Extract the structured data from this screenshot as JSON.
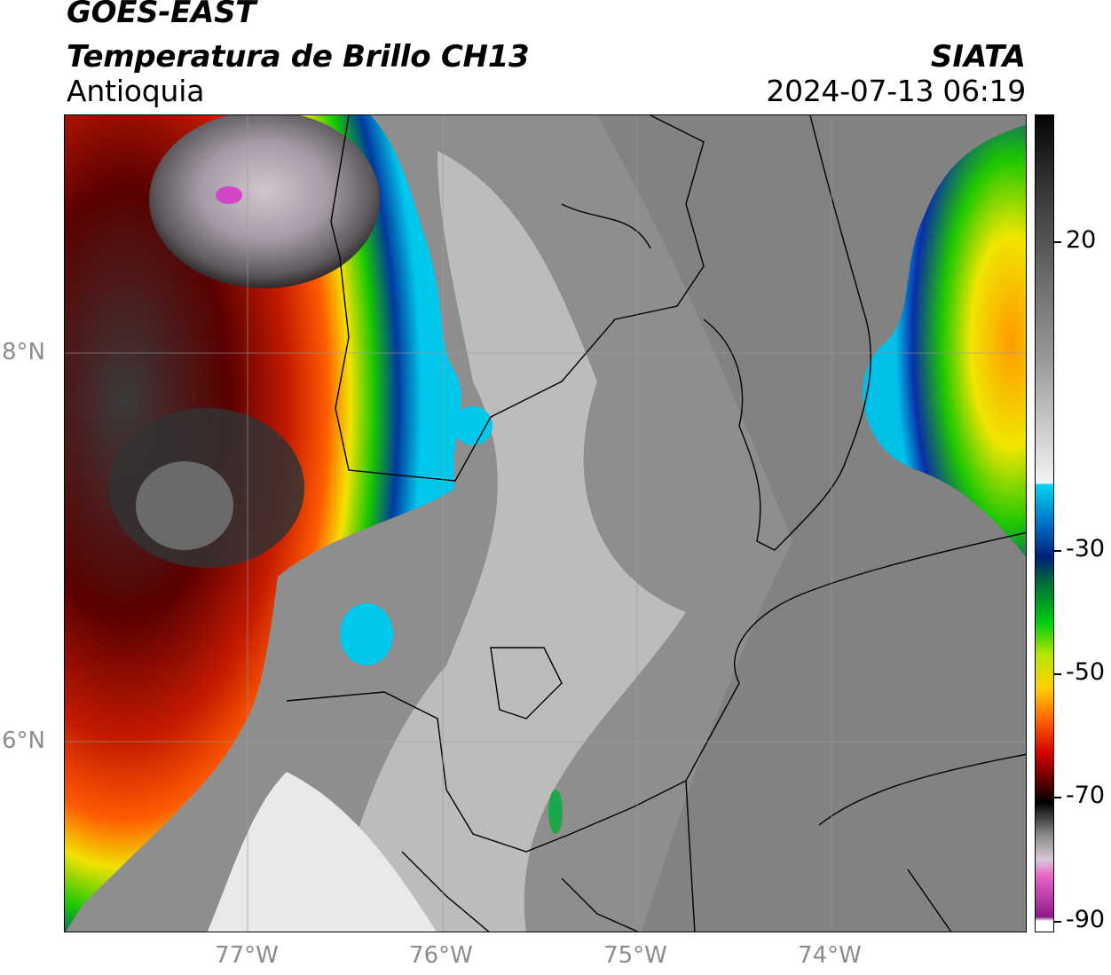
{
  "header": {
    "satellite": "GOES-EAST",
    "product": "Temperatura de Brillo CH13",
    "region": "Antioquia",
    "organization": "SIATA",
    "datetime": "2024-07-13 06:19"
  },
  "axes": {
    "lat_labels": [
      "8°N",
      "6°N"
    ],
    "lon_labels": [
      "77°W",
      "76°W",
      "75°W",
      "74°W"
    ]
  },
  "colorbar": {
    "labels": [
      "20",
      "-30",
      "-50",
      "-70",
      "-90"
    ]
  }
}
